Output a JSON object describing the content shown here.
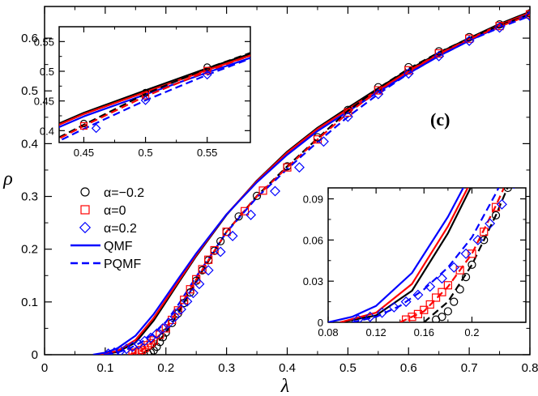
{
  "chart_data": {
    "type": "line",
    "panel_label": "(c)",
    "xlabel": "λ",
    "ylabel": "ρ",
    "main": {
      "xlim": [
        0,
        0.8
      ],
      "ylim": [
        0,
        0.66
      ],
      "xticks": [
        "0",
        "0.1",
        "0.2",
        "0.3",
        "0.4",
        "0.5",
        "0.6",
        "0.7",
        "0.8"
      ],
      "yticks": [
        "0",
        "0.1",
        "0.2",
        "0.3",
        "0.4",
        "0.5",
        "0.6"
      ]
    },
    "inset_top": {
      "xlim": [
        0.43,
        0.585
      ],
      "ylim": [
        0.38,
        0.575
      ],
      "xticks": [
        "0.45",
        "0.5",
        "0.55"
      ],
      "yticks": [
        "0.4",
        "0.45",
        "0.5",
        "0.55"
      ]
    },
    "inset_bottom": {
      "xlim": [
        0.08,
        0.245
      ],
      "ylim": [
        0,
        0.098
      ],
      "xticks": [
        "0.08",
        "0.12",
        "0.16",
        "0.2"
      ],
      "yticks": [
        "0",
        "0.03",
        "0.06",
        "0.09"
      ]
    },
    "legend": [
      {
        "label": "α=−0.2",
        "color": "#000000",
        "kind": "marker",
        "marker": "circle"
      },
      {
        "label": "α=0",
        "color": "#ff0000",
        "kind": "marker",
        "marker": "square"
      },
      {
        "label": "α=0.2",
        "color": "#0000ff",
        "kind": "marker",
        "marker": "diamond"
      },
      {
        "label": "QMF",
        "color": "#0000ff",
        "kind": "line",
        "dash": "solid"
      },
      {
        "label": "PQMF",
        "color": "#0000ff",
        "kind": "line",
        "dash": "dashed"
      }
    ],
    "series": [
      {
        "name": "QMF α=−0.2",
        "color": "#000000",
        "style": "solid",
        "x": [
          0.09,
          0.12,
          0.15,
          0.18,
          0.2,
          0.22,
          0.25,
          0.3,
          0.35,
          0.4,
          0.45,
          0.5,
          0.55,
          0.6,
          0.65,
          0.7,
          0.75,
          0.8
        ],
        "y": [
          0,
          0.005,
          0.023,
          0.065,
          0.1,
          0.135,
          0.187,
          0.265,
          0.33,
          0.385,
          0.43,
          0.468,
          0.505,
          0.54,
          0.572,
          0.6,
          0.627,
          0.65
        ]
      },
      {
        "name": "QMF α=0",
        "color": "#ff0000",
        "style": "solid",
        "x": [
          0.09,
          0.12,
          0.15,
          0.18,
          0.2,
          0.22,
          0.25,
          0.3,
          0.35,
          0.4,
          0.45,
          0.5,
          0.55,
          0.6,
          0.65,
          0.7,
          0.75,
          0.8
        ],
        "y": [
          0,
          0.007,
          0.028,
          0.07,
          0.104,
          0.138,
          0.189,
          0.266,
          0.329,
          0.383,
          0.428,
          0.465,
          0.502,
          0.537,
          0.569,
          0.598,
          0.625,
          0.648
        ]
      },
      {
        "name": "QMF α=0.2",
        "color": "#0000ff",
        "style": "solid",
        "x": [
          0.08,
          0.1,
          0.12,
          0.15,
          0.18,
          0.2,
          0.22,
          0.25,
          0.3,
          0.35,
          0.4,
          0.45,
          0.5,
          0.55,
          0.6,
          0.65,
          0.7,
          0.75,
          0.8
        ],
        "y": [
          0,
          0.004,
          0.012,
          0.036,
          0.077,
          0.11,
          0.143,
          0.192,
          0.266,
          0.327,
          0.379,
          0.424,
          0.461,
          0.498,
          0.533,
          0.566,
          0.595,
          0.622,
          0.646
        ]
      },
      {
        "name": "PQMF α=−0.2",
        "color": "#000000",
        "style": "dashed",
        "x": [
          0.16,
          0.18,
          0.2,
          0.22,
          0.25,
          0.3,
          0.35,
          0.4,
          0.45,
          0.5,
          0.55,
          0.6,
          0.65,
          0.7,
          0.75,
          0.8
        ],
        "y": [
          0,
          0.015,
          0.042,
          0.078,
          0.14,
          0.233,
          0.301,
          0.357,
          0.41,
          0.462,
          0.505,
          0.542,
          0.573,
          0.6,
          0.624,
          0.645
        ]
      },
      {
        "name": "PQMF α=0",
        "color": "#ff0000",
        "style": "dashed",
        "x": [
          0.14,
          0.16,
          0.18,
          0.2,
          0.22,
          0.25,
          0.3,
          0.35,
          0.4,
          0.45,
          0.5,
          0.55,
          0.6,
          0.65,
          0.7,
          0.75,
          0.8
        ],
        "y": [
          0,
          0.008,
          0.026,
          0.05,
          0.085,
          0.143,
          0.233,
          0.3,
          0.355,
          0.408,
          0.458,
          0.5,
          0.538,
          0.57,
          0.598,
          0.622,
          0.644
        ]
      },
      {
        "name": "PQMF α=0.2",
        "color": "#0000ff",
        "style": "dashed",
        "x": [
          0.1,
          0.12,
          0.14,
          0.16,
          0.18,
          0.2,
          0.22,
          0.25,
          0.3,
          0.35,
          0.4,
          0.45,
          0.5,
          0.55,
          0.6,
          0.65,
          0.7,
          0.75,
          0.8
        ],
        "y": [
          0,
          0.004,
          0.012,
          0.024,
          0.04,
          0.062,
          0.094,
          0.148,
          0.232,
          0.298,
          0.352,
          0.403,
          0.451,
          0.494,
          0.533,
          0.566,
          0.595,
          0.62,
          0.642
        ]
      },
      {
        "name": "α=−0.2",
        "color": "#000000",
        "style": "marker",
        "marker": "circle",
        "x": [
          0.17,
          0.175,
          0.18,
          0.185,
          0.19,
          0.195,
          0.2,
          0.21,
          0.22,
          0.23,
          0.24,
          0.25,
          0.26,
          0.27,
          0.28,
          0.29,
          0.3,
          0.32,
          0.35,
          0.4,
          0.45,
          0.5,
          0.55,
          0.6,
          0.65,
          0.7,
          0.75,
          0.8
        ],
        "y": [
          0.002,
          0.004,
          0.008,
          0.015,
          0.024,
          0.033,
          0.042,
          0.06,
          0.078,
          0.098,
          0.118,
          0.14,
          0.16,
          0.179,
          0.197,
          0.215,
          0.233,
          0.262,
          0.301,
          0.357,
          0.412,
          0.464,
          0.507,
          0.545,
          0.575,
          0.602,
          0.626,
          0.647
        ]
      },
      {
        "name": "α=0",
        "color": "#ff0000",
        "style": "marker",
        "marker": "square",
        "x": [
          0.145,
          0.15,
          0.155,
          0.16,
          0.165,
          0.17,
          0.175,
          0.18,
          0.19,
          0.2,
          0.21,
          0.22,
          0.23,
          0.24,
          0.25,
          0.26,
          0.27,
          0.28,
          0.3,
          0.33,
          0.36,
          0.4,
          0.45,
          0.5,
          0.55,
          0.6,
          0.65,
          0.7,
          0.75,
          0.8
        ],
        "y": [
          0.002,
          0.004,
          0.006,
          0.009,
          0.013,
          0.018,
          0.022,
          0.027,
          0.038,
          0.05,
          0.066,
          0.084,
          0.104,
          0.124,
          0.143,
          0.162,
          0.18,
          0.198,
          0.233,
          0.272,
          0.311,
          0.355,
          0.408,
          0.459,
          0.501,
          0.539,
          0.571,
          0.599,
          0.623,
          0.645
        ]
      },
      {
        "name": "α=0.2",
        "color": "#0000ff",
        "style": "marker",
        "marker": "diamond",
        "x": [
          0.105,
          0.115,
          0.125,
          0.135,
          0.145,
          0.155,
          0.165,
          0.175,
          0.185,
          0.195,
          0.205,
          0.215,
          0.225,
          0.235,
          0.245,
          0.255,
          0.27,
          0.29,
          0.31,
          0.34,
          0.38,
          0.42,
          0.46,
          0.5,
          0.55,
          0.6,
          0.65,
          0.7,
          0.75,
          0.8
        ],
        "y": [
          0.002,
          0.004,
          0.007,
          0.011,
          0.015,
          0.02,
          0.026,
          0.032,
          0.04,
          0.05,
          0.06,
          0.072,
          0.086,
          0.101,
          0.117,
          0.134,
          0.16,
          0.195,
          0.225,
          0.265,
          0.31,
          0.355,
          0.404,
          0.451,
          0.494,
          0.533,
          0.566,
          0.595,
          0.62,
          0.642
        ]
      }
    ]
  }
}
